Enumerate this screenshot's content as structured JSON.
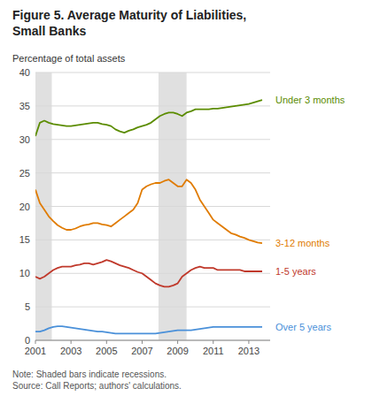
{
  "chart_data": {
    "type": "line",
    "title": "Figure 5. Average Maturity of Liabilities,\nSmall Banks",
    "ylabel": "Percentage of total assets",
    "note": "Note: Shaded bars indicate recessions.\nSource: Call Reports; authors' calculations.",
    "xlim": [
      2001,
      2014.2
    ],
    "xticks": [
      2001,
      2003,
      2005,
      2007,
      2009,
      2011,
      2013
    ],
    "ylim": [
      0,
      40
    ],
    "yticks": [
      0,
      5,
      10,
      15,
      20,
      25,
      30,
      35,
      40
    ],
    "grid": true,
    "recession_bars": [
      [
        2001.0,
        2001.92
      ],
      [
        2007.92,
        2009.5
      ]
    ],
    "x": [
      2001.0,
      2001.25,
      2001.5,
      2001.75,
      2002.0,
      2002.25,
      2002.5,
      2002.75,
      2003.0,
      2003.25,
      2003.5,
      2003.75,
      2004.0,
      2004.25,
      2004.5,
      2004.75,
      2005.0,
      2005.25,
      2005.5,
      2005.75,
      2006.0,
      2006.25,
      2006.5,
      2006.75,
      2007.0,
      2007.25,
      2007.5,
      2007.75,
      2008.0,
      2008.25,
      2008.5,
      2008.75,
      2009.0,
      2009.25,
      2009.5,
      2009.75,
      2010.0,
      2010.25,
      2010.5,
      2010.75,
      2011.0,
      2011.25,
      2011.5,
      2011.75,
      2012.0,
      2012.25,
      2012.5,
      2012.75,
      2013.0,
      2013.25,
      2013.5,
      2013.75
    ],
    "series": [
      {
        "name": "Under 3 months",
        "color": "#5b8c00",
        "values": [
          30.5,
          32.5,
          32.8,
          32.5,
          32.3,
          32.2,
          32.1,
          32.0,
          32.0,
          32.1,
          32.2,
          32.3,
          32.4,
          32.5,
          32.5,
          32.3,
          32.2,
          32.0,
          31.5,
          31.2,
          31.0,
          31.3,
          31.5,
          31.8,
          32.0,
          32.2,
          32.5,
          33.0,
          33.5,
          33.8,
          34.0,
          34.0,
          33.8,
          33.5,
          34.0,
          34.2,
          34.5,
          34.5,
          34.5,
          34.5,
          34.6,
          34.6,
          34.7,
          34.8,
          34.9,
          35.0,
          35.1,
          35.2,
          35.3,
          35.5,
          35.7,
          35.9
        ]
      },
      {
        "name": "3-12 months",
        "color": "#e07b00",
        "values": [
          22.5,
          20.5,
          19.5,
          18.5,
          17.8,
          17.2,
          16.8,
          16.5,
          16.5,
          16.7,
          17.0,
          17.2,
          17.3,
          17.5,
          17.5,
          17.3,
          17.2,
          17.0,
          17.5,
          18.0,
          18.5,
          19.0,
          19.5,
          20.5,
          22.5,
          23.0,
          23.3,
          23.5,
          23.5,
          23.8,
          24.0,
          23.5,
          23.0,
          23.0,
          24.0,
          23.5,
          22.5,
          21.0,
          20.0,
          19.0,
          18.0,
          17.5,
          17.0,
          16.5,
          16.0,
          15.8,
          15.5,
          15.3,
          15.0,
          14.8,
          14.6,
          14.5
        ]
      },
      {
        "name": "1-5 years",
        "color": "#c0392b",
        "values": [
          9.5,
          9.2,
          9.5,
          10.0,
          10.5,
          10.8,
          11.0,
          11.0,
          11.0,
          11.2,
          11.3,
          11.5,
          11.5,
          11.3,
          11.5,
          11.7,
          12.0,
          11.8,
          11.5,
          11.2,
          11.0,
          10.8,
          10.5,
          10.2,
          10.0,
          9.5,
          9.0,
          8.5,
          8.2,
          8.0,
          8.0,
          8.2,
          8.5,
          9.5,
          10.0,
          10.5,
          10.8,
          11.0,
          10.8,
          10.8,
          10.8,
          10.5,
          10.5,
          10.5,
          10.5,
          10.5,
          10.5,
          10.3,
          10.3,
          10.3,
          10.3,
          10.3
        ]
      },
      {
        "name": "Over 5 years",
        "color": "#4a90d9",
        "values": [
          1.3,
          1.3,
          1.5,
          1.8,
          2.0,
          2.1,
          2.1,
          2.0,
          1.9,
          1.8,
          1.7,
          1.6,
          1.5,
          1.4,
          1.3,
          1.3,
          1.2,
          1.1,
          1.0,
          1.0,
          1.0,
          1.0,
          1.0,
          1.0,
          1.0,
          1.0,
          1.0,
          1.0,
          1.1,
          1.2,
          1.3,
          1.4,
          1.5,
          1.5,
          1.5,
          1.5,
          1.6,
          1.7,
          1.8,
          1.9,
          2.0,
          2.0,
          2.0,
          2.0,
          2.0,
          2.0,
          2.0,
          2.0,
          2.0,
          2.0,
          2.0,
          2.0
        ]
      }
    ]
  }
}
